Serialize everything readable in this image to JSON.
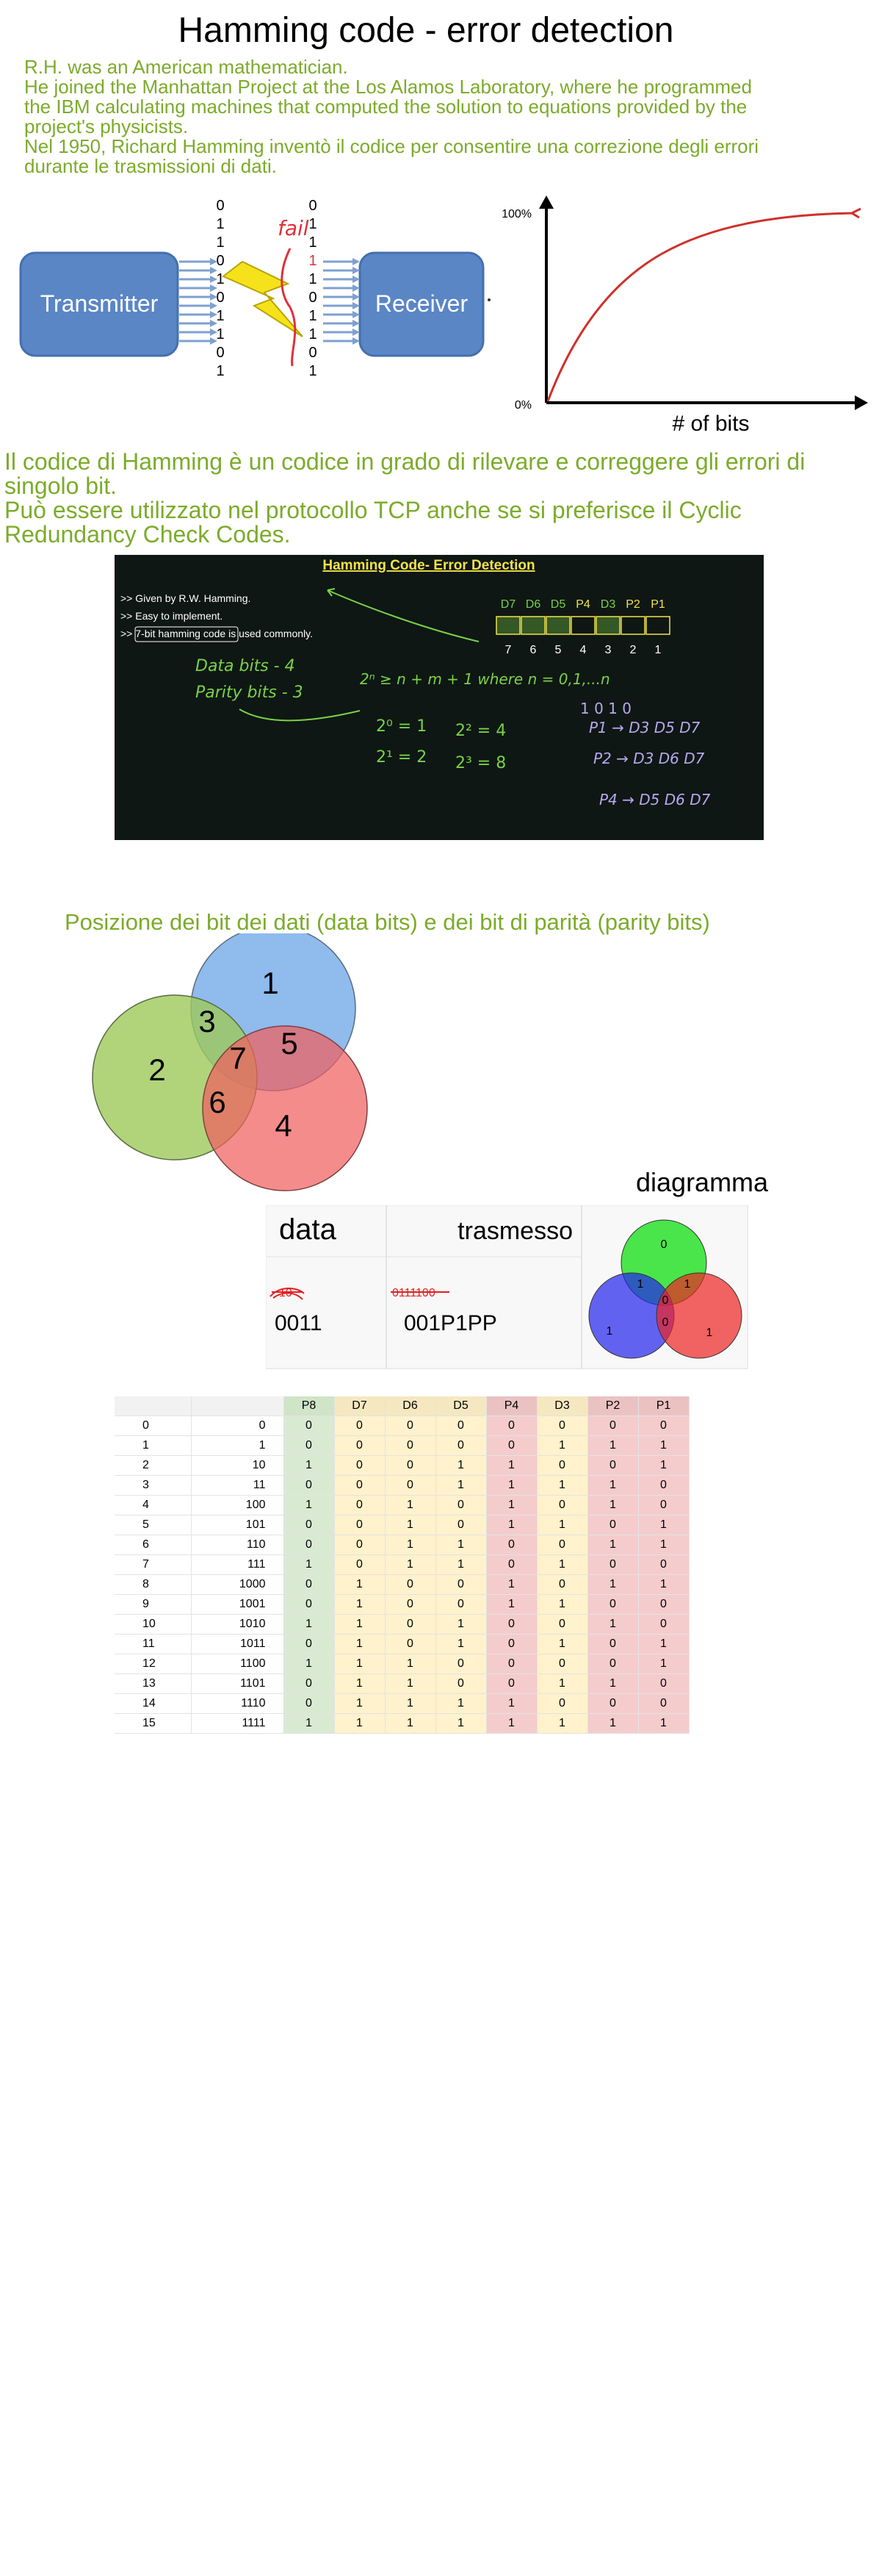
{
  "title": "Hamming code - error detection",
  "intro_lines": [
    "R.H. was an American mathematician.",
    "He joined the Manhattan Project at the Los Alamos Laboratory, where he programmed",
    "the IBM calculating machines that computed the solution to equations provided by the",
    "project's physicists.",
    "Nel 1950, Richard Hamming inventò il codice  per consentire una correzione degli errori",
    "durante le trasmissioni di dati."
  ],
  "transmission": {
    "transmitter_label": "Transmitter",
    "receiver_label": "Receiver",
    "sent_bits": [
      "0",
      "1",
      "1",
      "0",
      "1",
      "0",
      "1",
      "1",
      "0",
      "1"
    ],
    "received_bits": [
      "0",
      "1",
      "1",
      "1",
      "1",
      "0",
      "1",
      "1",
      "0",
      "1"
    ],
    "fail_label": "fail",
    "colors": {
      "box": "#5a86c6",
      "bolt": "#f6e21a",
      "fail": "#e0303a"
    }
  },
  "error_curve": {
    "y_top_label": "100%",
    "y_bottom_label": "0%",
    "x_label": "# of bits",
    "curve_color": "#d0302a"
  },
  "para2_lines": [
    "Il codice di Hamming è un codice in grado di rilevare e correggere gli errori di",
    "singolo bit.",
    "Può essere utilizzato nel protocollo TCP anche se si preferisce il Cyclic",
    "Redundancy Check Codes."
  ],
  "blackboard": {
    "title": "Hamming Code- Error Detection",
    "bullets": [
      ">> Given by R.W. Hamming.",
      ">> Easy to implement.",
      ">> 7-bit hamming code is used commonly."
    ],
    "bit_labels": [
      "D7",
      "D6",
      "D5",
      "P4",
      "D3",
      "P2",
      "P1"
    ],
    "positions": [
      "7",
      "6",
      "5",
      "4",
      "3",
      "2",
      "1"
    ],
    "data_bits_line": "Data bits - 4",
    "parity_bits_line": "Parity bits - 3",
    "formula": "2ⁿ ≥ n + m + 1   where n = 0,1,...n",
    "pow_lines": [
      "2⁰ = 1",
      "2¹ = 2",
      "2² = 4",
      "2³ = 8"
    ],
    "sample_bits": "1   0 1 0",
    "rules": [
      "P1 → D3 D5 D7",
      "P2 → D3 D6 D7",
      "P4 → D5 D6 D7"
    ]
  },
  "subtitle": "Posizione dei bit dei dati (data bits) e dei bit di parità (parity bits)",
  "venn_main": {
    "region_labels": [
      "1",
      "2",
      "3",
      "4",
      "5",
      "6",
      "7"
    ],
    "colors": {
      "blue": "#6fa8e8",
      "green": "#9ec95a",
      "red": "#f06060"
    }
  },
  "small_table": {
    "diagram_caption": "diagramma",
    "col_data": "data",
    "col_sent": "trasmesso",
    "data_scribble": "10",
    "sent_scribble": "0111100",
    "data_value": "0011",
    "sent_value": "001P1PP",
    "venn_values": [
      "0",
      "1",
      "1",
      "0",
      "1",
      "0",
      "1"
    ]
  },
  "bit_table": {
    "headers": [
      "",
      "",
      "P8",
      "D7",
      "D6",
      "D5",
      "P4",
      "D3",
      "P2",
      "P1"
    ],
    "rows": [
      [
        "0",
        "0",
        "0",
        "0",
        "0",
        "0",
        "0",
        "0",
        "0",
        "0"
      ],
      [
        "1",
        "1",
        "0",
        "0",
        "0",
        "0",
        "0",
        "1",
        "1",
        "1"
      ],
      [
        "2",
        "10",
        "1",
        "0",
        "0",
        "1",
        "1",
        "0",
        "0",
        "1"
      ],
      [
        "3",
        "11",
        "0",
        "0",
        "0",
        "1",
        "1",
        "1",
        "1",
        "0"
      ],
      [
        "4",
        "100",
        "1",
        "0",
        "1",
        "0",
        "1",
        "0",
        "1",
        "0"
      ],
      [
        "5",
        "101",
        "0",
        "0",
        "1",
        "0",
        "1",
        "1",
        "0",
        "1"
      ],
      [
        "6",
        "110",
        "0",
        "0",
        "1",
        "1",
        "0",
        "0",
        "1",
        "1"
      ],
      [
        "7",
        "111",
        "1",
        "0",
        "1",
        "1",
        "0",
        "1",
        "0",
        "0"
      ],
      [
        "8",
        "1000",
        "0",
        "1",
        "0",
        "0",
        "1",
        "0",
        "1",
        "1"
      ],
      [
        "9",
        "1001",
        "0",
        "1",
        "0",
        "0",
        "1",
        "1",
        "0",
        "0"
      ],
      [
        "10",
        "1010",
        "1",
        "1",
        "0",
        "1",
        "0",
        "0",
        "1",
        "0"
      ],
      [
        "11",
        "1011",
        "0",
        "1",
        "0",
        "1",
        "0",
        "1",
        "0",
        "1"
      ],
      [
        "12",
        "1100",
        "1",
        "1",
        "1",
        "0",
        "0",
        "0",
        "0",
        "1"
      ],
      [
        "13",
        "1101",
        "0",
        "1",
        "1",
        "0",
        "0",
        "1",
        "1",
        "0"
      ],
      [
        "14",
        "1110",
        "0",
        "1",
        "1",
        "1",
        "1",
        "0",
        "0",
        "0"
      ],
      [
        "15",
        "1111",
        "1",
        "1",
        "1",
        "1",
        "1",
        "1",
        "1",
        "1"
      ]
    ],
    "column_colors": [
      "",
      "",
      "green",
      "yellow",
      "yellow",
      "yellow",
      "red",
      "yellow",
      "red",
      "red"
    ]
  }
}
